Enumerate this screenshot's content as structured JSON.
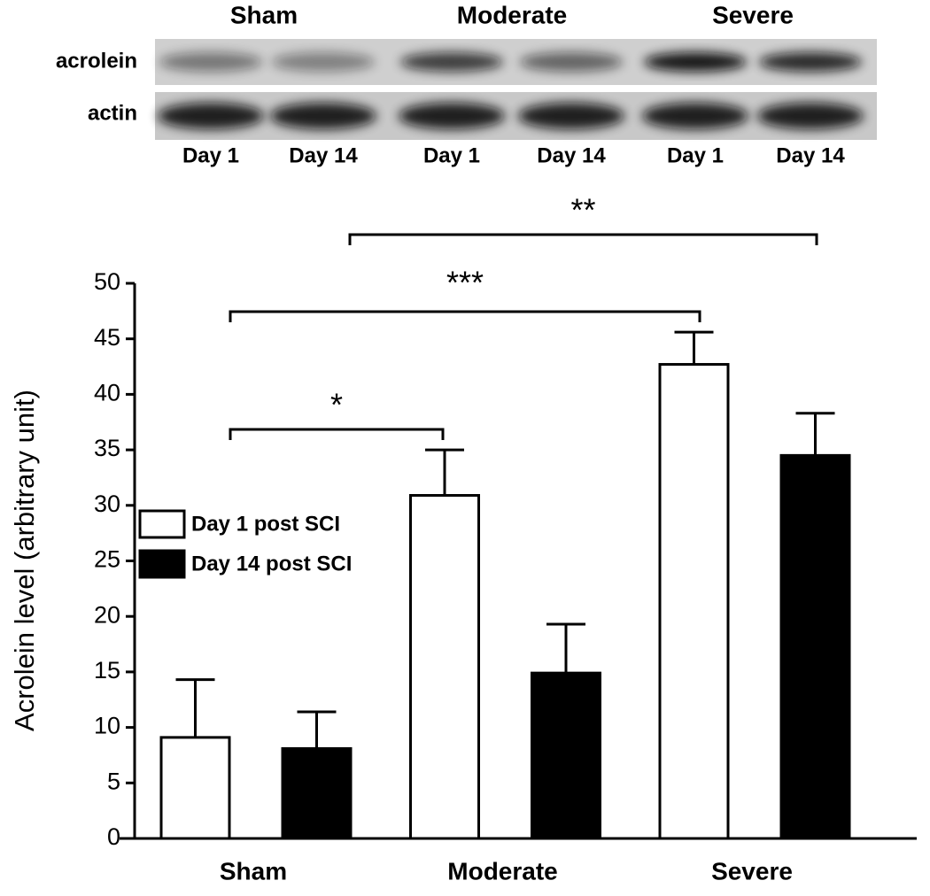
{
  "blot": {
    "groups": [
      "Sham",
      "Moderate",
      "Severe"
    ],
    "rows": [
      "acrolein",
      "actin"
    ],
    "lanes": [
      "Day 1",
      "Day 14",
      "Day 1",
      "Day 14",
      "Day 1",
      "Day 14"
    ]
  },
  "chart_data": {
    "type": "bar",
    "ylabel": "Acrolein level (arbitrary unit)",
    "categories": [
      "Sham",
      "Moderate",
      "Severe"
    ],
    "series": [
      {
        "name": "Day 1 post SCI",
        "color": "#ffffff",
        "values": [
          9.1,
          30.9,
          42.7
        ],
        "errors": [
          5.2,
          4.1,
          2.9
        ]
      },
      {
        "name": "Day 14 post SCI",
        "color": "#000000",
        "values": [
          8.1,
          14.9,
          34.5
        ],
        "errors": [
          3.3,
          4.4,
          3.8
        ]
      }
    ],
    "ylim": [
      0,
      50
    ],
    "yticks": [
      0,
      5,
      10,
      15,
      20,
      25,
      30,
      35,
      40,
      45,
      50
    ],
    "annotations": [
      "*",
      "***",
      "**"
    ]
  }
}
